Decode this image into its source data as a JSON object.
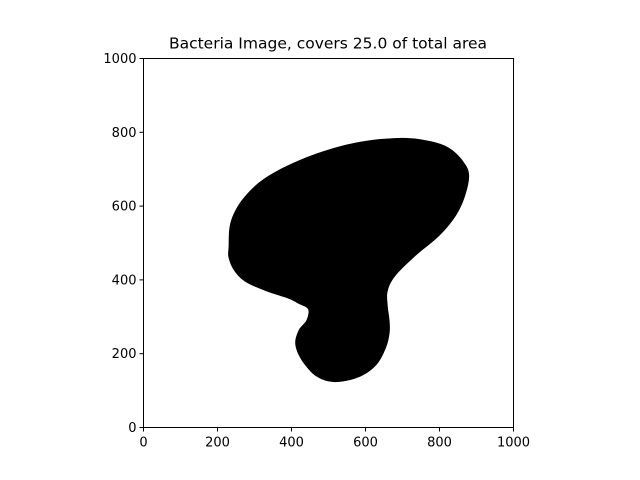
{
  "chart_data": {
    "type": "heatmap",
    "title": "Bacteria Image, covers 25.0 of total area",
    "xlabel": "",
    "ylabel": "",
    "xlim": [
      0,
      1000
    ],
    "ylim": [
      0,
      1000
    ],
    "x_ticks": [
      "0",
      "200",
      "400",
      "600",
      "800",
      "1000"
    ],
    "y_ticks": [
      "0",
      "200",
      "400",
      "600",
      "800",
      "1000"
    ],
    "grid": false,
    "coverage_percent": 25.0,
    "colors": {
      "region": "#000000",
      "background": "#ffffff"
    },
    "region_outline": [
      [
        230,
        490
      ],
      [
        235,
        555
      ],
      [
        265,
        615
      ],
      [
        320,
        670
      ],
      [
        400,
        715
      ],
      [
        490,
        750
      ],
      [
        590,
        775
      ],
      [
        700,
        785
      ],
      [
        780,
        775
      ],
      [
        830,
        755
      ],
      [
        865,
        720
      ],
      [
        880,
        685
      ],
      [
        870,
        630
      ],
      [
        845,
        575
      ],
      [
        800,
        520
      ],
      [
        735,
        465
      ],
      [
        680,
        410
      ],
      [
        660,
        370
      ],
      [
        660,
        330
      ],
      [
        665,
        290
      ],
      [
        665,
        255
      ],
      [
        655,
        215
      ],
      [
        630,
        170
      ],
      [
        590,
        140
      ],
      [
        540,
        125
      ],
      [
        500,
        125
      ],
      [
        465,
        140
      ],
      [
        440,
        165
      ],
      [
        420,
        195
      ],
      [
        410,
        230
      ],
      [
        420,
        265
      ],
      [
        440,
        290
      ],
      [
        445,
        320
      ],
      [
        420,
        335
      ],
      [
        390,
        350
      ],
      [
        330,
        370
      ],
      [
        275,
        395
      ],
      [
        245,
        425
      ],
      [
        230,
        460
      ]
    ]
  }
}
